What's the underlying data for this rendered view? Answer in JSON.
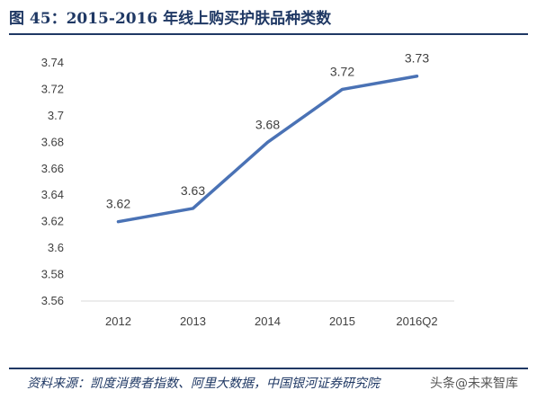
{
  "header": {
    "title": "图 45：2015-2016 年线上购买护肤品种类数"
  },
  "footer": {
    "source": "资料来源：凯度消费者指数、阿里大数据，中国银河证券研究院",
    "watermark": "头条@未来智库"
  },
  "colors": {
    "line": "#4a72b5",
    "title": "#1f3864",
    "rule": "#1f3864"
  },
  "chart_data": {
    "type": "line",
    "title": "",
    "xlabel": "",
    "ylabel": "",
    "categories": [
      "2012",
      "2013",
      "2014",
      "2015",
      "2016Q2"
    ],
    "values": [
      3.62,
      3.63,
      3.68,
      3.72,
      3.73
    ],
    "data_labels": [
      "3.62",
      "3.63",
      "3.68",
      "3.72",
      "3.73"
    ],
    "y_ticks": [
      "3.56",
      "3.58",
      "3.6",
      "3.62",
      "3.64",
      "3.66",
      "3.68",
      "3.7",
      "3.72",
      "3.74"
    ],
    "ylim": [
      3.56,
      3.74
    ],
    "grid": false,
    "legend": "none"
  }
}
